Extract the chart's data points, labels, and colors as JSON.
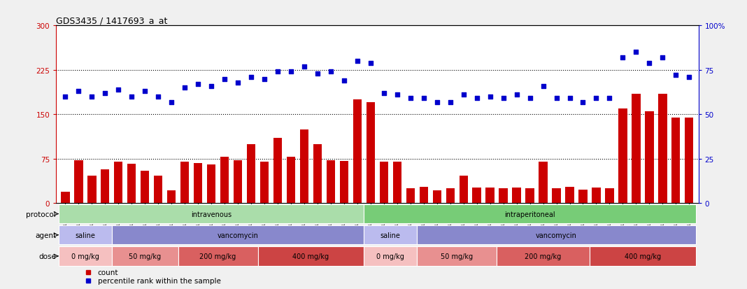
{
  "title": "GDS3435 / 1417693_a_at",
  "samples": [
    "GSM189045",
    "GSM189047",
    "GSM189048",
    "GSM189049",
    "GSM189050",
    "GSM189051",
    "GSM189052",
    "GSM189053",
    "GSM189054",
    "GSM189055",
    "GSM189056",
    "GSM189057",
    "GSM189058",
    "GSM189059",
    "GSM189060",
    "GSM189062",
    "GSM189063",
    "GSM189064",
    "GSM189065",
    "GSM189066",
    "GSM189068",
    "GSM189069",
    "GSM189070",
    "GSM189071",
    "GSM189072",
    "GSM189073",
    "GSM189074",
    "GSM189075",
    "GSM189076",
    "GSM189077",
    "GSM189078",
    "GSM189079",
    "GSM189080",
    "GSM189081",
    "GSM189082",
    "GSM189083",
    "GSM189084",
    "GSM189085",
    "GSM189086",
    "GSM189087",
    "GSM189088",
    "GSM189089",
    "GSM189090",
    "GSM189091",
    "GSM189092",
    "GSM189093",
    "GSM189094",
    "GSM189095"
  ],
  "bar_values": [
    20,
    72,
    47,
    57,
    70,
    67,
    55,
    47,
    22,
    70,
    68,
    65,
    78,
    72,
    100,
    70,
    110,
    78,
    125,
    100,
    72,
    71,
    175,
    170,
    70,
    70,
    25,
    28,
    22,
    25,
    47,
    27,
    27,
    25,
    27,
    25,
    70,
    25,
    28,
    23,
    27,
    25,
    160,
    185,
    155,
    185,
    145,
    145
  ],
  "pct_values": [
    60,
    63,
    60,
    62,
    64,
    60,
    63,
    60,
    57,
    65,
    67,
    66,
    70,
    68,
    71,
    70,
    74,
    74,
    77,
    73,
    74,
    69,
    80,
    79,
    62,
    61,
    59,
    59,
    57,
    57,
    61,
    59,
    60,
    59,
    61,
    59,
    66,
    59,
    59,
    57,
    59,
    59,
    82,
    85,
    79,
    82,
    72,
    71
  ],
  "bar_color": "#cc0000",
  "pct_color": "#0000cc",
  "ylim_left": [
    0,
    300
  ],
  "ylim_right": [
    0,
    100
  ],
  "yticks_left": [
    0,
    75,
    150,
    225,
    300
  ],
  "yticks_right": [
    0,
    25,
    50,
    75,
    100
  ],
  "protocol_groups": [
    {
      "label": "intravenous",
      "start": 0,
      "end": 23,
      "color": "#aaddaa"
    },
    {
      "label": "intraperitoneal",
      "start": 23,
      "end": 48,
      "color": "#77cc77"
    }
  ],
  "agent_groups": [
    {
      "label": "saline",
      "start": 0,
      "end": 4,
      "color": "#bbbbee"
    },
    {
      "label": "vancomycin",
      "start": 4,
      "end": 23,
      "color": "#8888cc"
    },
    {
      "label": "saline",
      "start": 23,
      "end": 27,
      "color": "#bbbbee"
    },
    {
      "label": "vancomycin",
      "start": 27,
      "end": 48,
      "color": "#8888cc"
    }
  ],
  "dose_groups": [
    {
      "label": "0 mg/kg",
      "start": 0,
      "end": 4,
      "color": "#f5c0c0"
    },
    {
      "label": "50 mg/kg",
      "start": 4,
      "end": 9,
      "color": "#e89090"
    },
    {
      "label": "200 mg/kg",
      "start": 9,
      "end": 15,
      "color": "#d96060"
    },
    {
      "label": "400 mg/kg",
      "start": 15,
      "end": 23,
      "color": "#cc4444"
    },
    {
      "label": "0 mg/kg",
      "start": 23,
      "end": 27,
      "color": "#f5c0c0"
    },
    {
      "label": "50 mg/kg",
      "start": 27,
      "end": 33,
      "color": "#e89090"
    },
    {
      "label": "200 mg/kg",
      "start": 33,
      "end": 40,
      "color": "#d96060"
    },
    {
      "label": "400 mg/kg",
      "start": 40,
      "end": 48,
      "color": "#cc4444"
    }
  ],
  "row_labels": [
    "protocol",
    "agent",
    "dose"
  ],
  "legend_bar": "count",
  "legend_pct": "percentile rank within the sample",
  "background_color": "#f0f0f0"
}
